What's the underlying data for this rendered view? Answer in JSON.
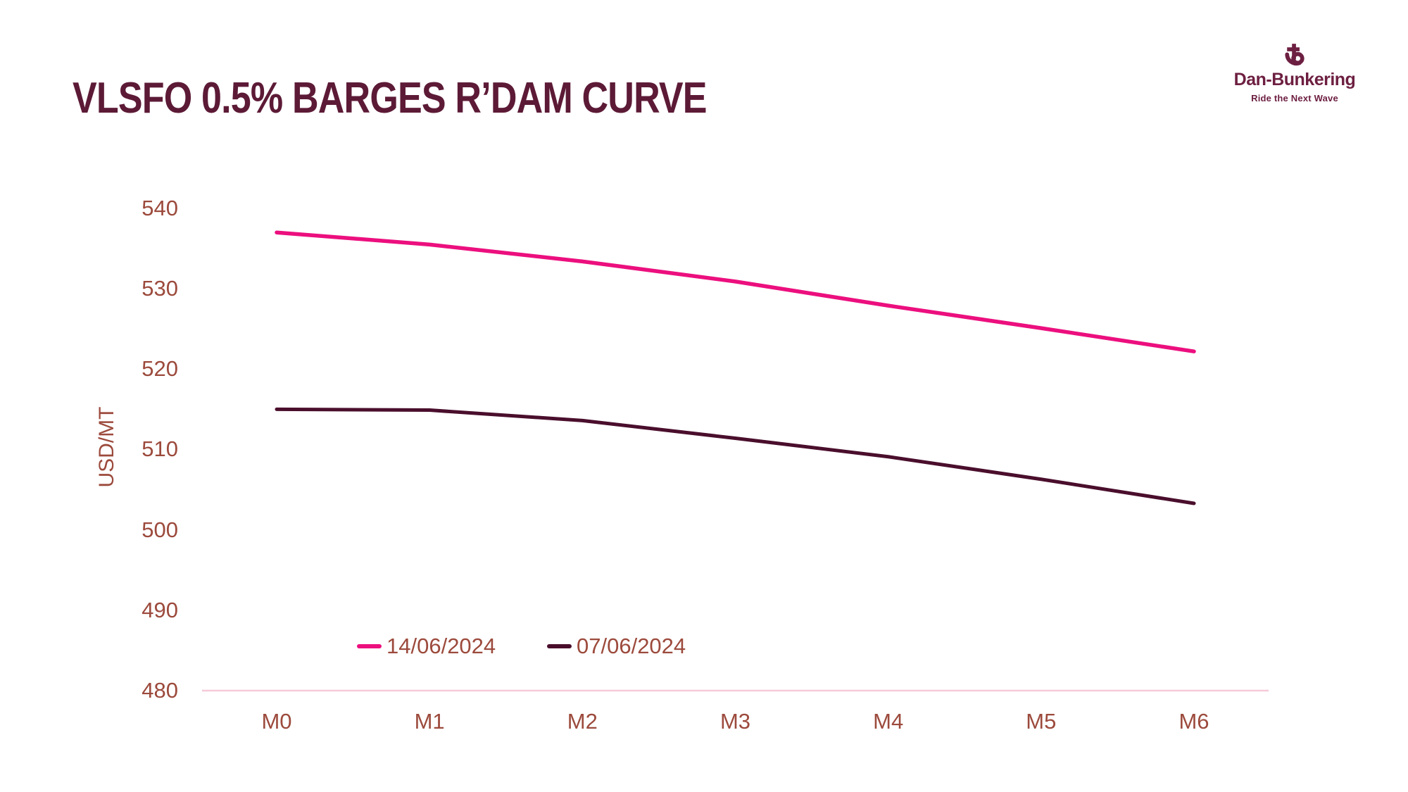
{
  "logo": {
    "name": "Dan-Bunkering",
    "tagline": "Ride the Next Wave",
    "icon": "anchor-b-icon",
    "color": "#6d1f41"
  },
  "chart_data": {
    "type": "line",
    "title": "VLSFO 0.5% BARGES R’DAM CURVE",
    "title_color": "#5c1a36",
    "categories": [
      "M0",
      "M1",
      "M2",
      "M3",
      "M4",
      "M5",
      "M6"
    ],
    "series": [
      {
        "name": "14/06/2024",
        "color": "#ec0f7e",
        "values": [
          537.0,
          535.5,
          533.4,
          530.9,
          527.9,
          525.1,
          522.2
        ]
      },
      {
        "name": "07/06/2024",
        "color": "#4a0e2c",
        "values": [
          515.0,
          514.9,
          513.6,
          511.4,
          509.1,
          506.3,
          503.3
        ]
      }
    ],
    "xlabel": "",
    "ylabel": "USD/MT",
    "ylim": [
      480,
      540
    ],
    "yticks": [
      540,
      530,
      520,
      510,
      500,
      490,
      480
    ],
    "grid": false,
    "legend_position": "bottom-center",
    "axis_text_color": "#9c4a3c",
    "baseline_color": "#f6c9da"
  }
}
